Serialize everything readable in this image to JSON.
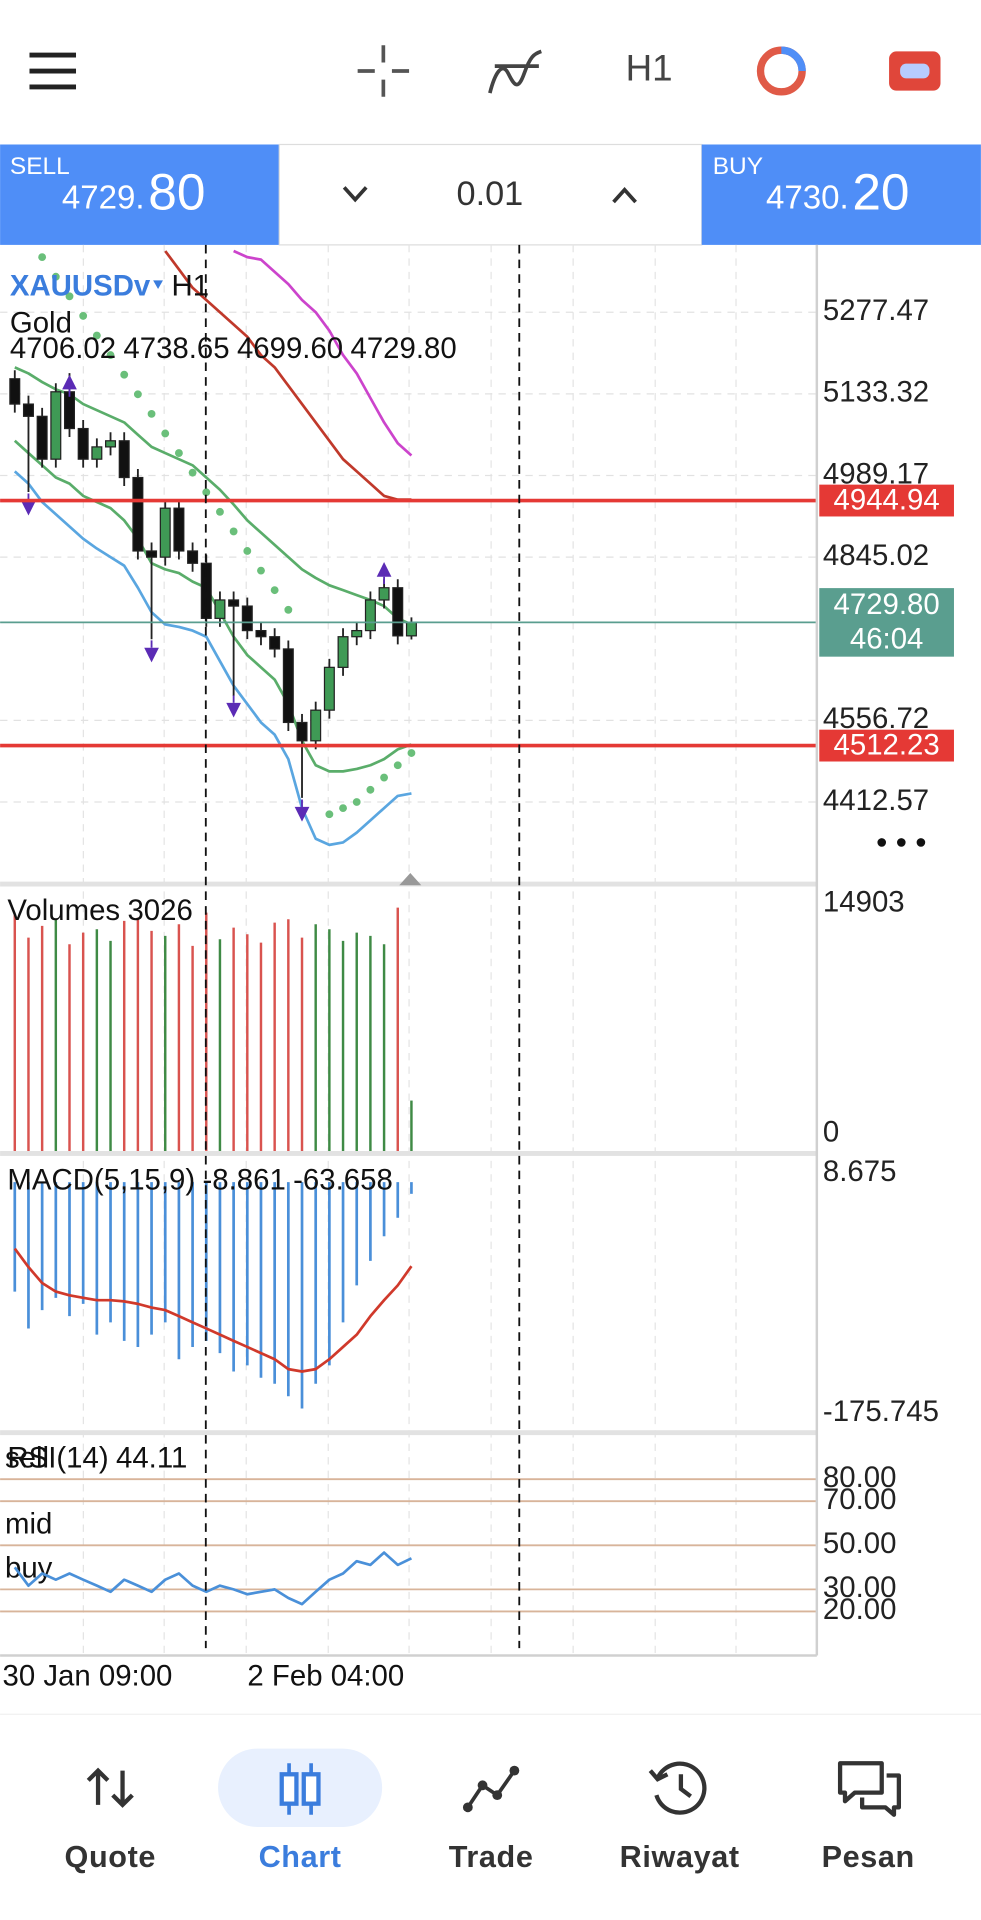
{
  "toolbar": {
    "timeframe": "H1"
  },
  "trade_bar": {
    "sell_label": "SELL",
    "sell_price_main": "4729.",
    "sell_price_big": "80",
    "lot": "0.01",
    "buy_label": "BUY",
    "buy_price_main": "4730.",
    "buy_price_big": "20"
  },
  "chart_data": [
    {
      "type": "candlestick",
      "symbol": "XAUUSDv",
      "timeframe": "H1",
      "description": "Gold",
      "ohlc_labels": [
        "4706.02",
        "4738.65",
        "4699.60",
        "4729.80"
      ],
      "open": [
        5160.0,
        5115.3,
        5093.7,
        5018.0,
        5137.0,
        5072.1,
        5018.0,
        5039.7,
        5050.5,
        4985.6,
        4855.9,
        4845.0,
        4931.5,
        4855.9,
        4834.2,
        4736.9,
        4769.4,
        4758.6,
        4715.3,
        4704.5,
        4682.9,
        4553.1,
        4520.7,
        4574.8,
        4650.4,
        4704.5,
        4715.3,
        4769.4,
        4791.0,
        4706.02
      ],
      "high": [
        5175.0,
        5130.3,
        5108.7,
        5152.0,
        5170.0,
        5087.1,
        5054.7,
        5065.5,
        5065.5,
        5000.6,
        4870.9,
        4946.5,
        4946.5,
        4870.9,
        4849.2,
        4784.4,
        4784.4,
        4773.6,
        4730.3,
        4719.5,
        4697.9,
        4568.1,
        4589.8,
        4665.4,
        4719.5,
        4730.3,
        4784.4,
        4806.0,
        4806.0,
        4738.65
      ],
      "low": [
        5100.3,
        4960.0,
        5003.0,
        5003.0,
        5057.1,
        5003.0,
        5003.0,
        5024.7,
        4970.6,
        4840.9,
        4700.0,
        4830.0,
        4840.9,
        4819.2,
        4721.9,
        4721.9,
        4600.0,
        4700.3,
        4689.5,
        4667.9,
        4538.1,
        4420.0,
        4505.7,
        4559.8,
        4635.4,
        4689.5,
        4700.3,
        4754.4,
        4691.0,
        4699.6
      ],
      "close": [
        5115.3,
        5093.7,
        5018.0,
        5137.0,
        5072.1,
        5018.0,
        5039.7,
        5050.5,
        4985.6,
        4855.9,
        4845.0,
        4931.5,
        4855.9,
        4834.2,
        4736.9,
        4769.4,
        4758.6,
        4715.3,
        4704.5,
        4682.9,
        4553.1,
        4520.7,
        4574.8,
        4650.4,
        4704.5,
        4715.3,
        4769.4,
        4791.0,
        4706.0,
        4729.8
      ],
      "up_color": "#3f9a55",
      "down_color": "#111111",
      "ylim": [
        4272.0,
        5396.4
      ],
      "yticks": [
        5277.47,
        5133.32,
        4989.17,
        4845.02,
        4556.72,
        4412.57
      ],
      "grid": true,
      "overlays": [
        {
          "style": "line",
          "color": "#5aa6e0",
          "values": [
            4996.4,
            4974.8,
            4942.4,
            4920.7,
            4899.1,
            4877.5,
            4860.2,
            4845.0,
            4829.9,
            4791.0,
            4747.7,
            4726.1,
            4721.8,
            4715.3,
            4704.5,
            4661.3,
            4618.0,
            4585.6,
            4553.1,
            4531.5,
            4488.3,
            4401.8,
            4347.7,
            4336.9,
            4341.2,
            4358.5,
            4380.2,
            4401.8,
            4423.4,
            4427.7
          ]
        },
        {
          "style": "line",
          "color": "#5aad6a",
          "values": [
            5050.5,
            5028.8,
            5007.2,
            4985.6,
            4974.8,
            4953.1,
            4942.4,
            4931.5,
            4909.9,
            4877.5,
            4834.2,
            4823.4,
            4816.9,
            4801.8,
            4791.0,
            4747.7,
            4704.5,
            4672.1,
            4650.4,
            4628.8,
            4585.6,
            4520.7,
            4477.5,
            4466.7,
            4466.7,
            4471.0,
            4477.5,
            4488.3,
            4505.6,
            4514.2
          ]
        },
        {
          "style": "line",
          "color": "#5aad6a",
          "values": [
            5180.2,
            5169.4,
            5154.2,
            5141.3,
            5132.6,
            5115.3,
            5104.5,
            5093.7,
            5082.9,
            5061.2,
            5039.7,
            5028.8,
            5018.0,
            5007.2,
            4985.6,
            4964.0,
            4938.0,
            4909.9,
            4888.3,
            4866.7,
            4845.0,
            4823.4,
            4808.3,
            4795.3,
            4786.7,
            4778.0,
            4769.4,
            4758.6,
            4736.9,
            4726.1
          ]
        },
        {
          "style": "line",
          "color": "#c0392b",
          "values": [
            null,
            null,
            null,
            null,
            null,
            null,
            null,
            null,
            null,
            null,
            null,
            5385.6,
            5353.2,
            5320.7,
            5299.1,
            5277.5,
            5255.8,
            5234.2,
            5201.8,
            5180.2,
            5147.7,
            5115.3,
            5082.9,
            5050.5,
            5018.0,
            4996.4,
            4974.8,
            4953.1,
            4946.6,
            4946.6
          ]
        },
        {
          "style": "line",
          "color": "#cc44cc",
          "values": [
            null,
            null,
            null,
            null,
            null,
            null,
            null,
            null,
            null,
            null,
            null,
            null,
            null,
            null,
            null,
            null,
            5385.6,
            5374.8,
            5370.4,
            5348.8,
            5327.2,
            5299.1,
            5277.5,
            5245.0,
            5201.8,
            5169.4,
            5126.1,
            5082.9,
            5046.1,
            5024.5
          ]
        },
        {
          "style": "dots",
          "color": "#6abf7a",
          "values": [
            null,
            null,
            5374.8,
            5340.2,
            5305.6,
            5271.0,
            5236.4,
            5201.8,
            5167.2,
            5132.6,
            5098.0,
            5063.4,
            5028.8,
            4994.2,
            4959.6,
            4925.0,
            4890.4,
            4855.9,
            4821.2,
            4786.7,
            4752.0,
            null,
            null,
            4391.0,
            4401.8,
            4412.6,
            4434.2,
            4455.8,
            4477.5,
            4499.1
          ]
        }
      ],
      "fractal_color": "#5b2bb5",
      "fractals_up": [
        null,
        null,
        null,
        null,
        5154.2,
        null,
        null,
        null,
        null,
        null,
        null,
        null,
        null,
        null,
        null,
        null,
        null,
        null,
        null,
        null,
        null,
        null,
        null,
        null,
        null,
        null,
        null,
        4823.4,
        null,
        null
      ],
      "fractals_down": [
        null,
        4931.5,
        null,
        null,
        null,
        null,
        null,
        null,
        null,
        null,
        4672.1,
        null,
        null,
        null,
        null,
        null,
        4574.8,
        null,
        null,
        null,
        null,
        4391.0,
        null,
        null,
        null,
        null,
        null,
        null,
        null,
        null
      ],
      "levels": [
        {
          "value": 4944.94,
          "color": "#e53935"
        },
        {
          "value": 4512.23,
          "color": "#e53935"
        }
      ],
      "bid": {
        "value": 4729.8,
        "label": "4729.80",
        "countdown": "46:04",
        "color": "#5a9e8f"
      },
      "x_labels": [
        "30 Jan 09:00",
        "2 Feb 04:00"
      ]
    },
    {
      "type": "volume",
      "title": "Volumes",
      "up_color": "#3f8a45",
      "down_color": "#d9534f",
      "values": [
        14200,
        12800,
        13500,
        13900,
        12400,
        13100,
        13300,
        12600,
        13800,
        14000,
        13200,
        12900,
        13600,
        12300,
        14300,
        12700,
        13400,
        13000,
        12500,
        13700,
        13900,
        12800,
        13600,
        13300,
        12600,
        13100,
        12900,
        12400,
        14600,
        3026
      ],
      "ylim": [
        0,
        15862
      ],
      "yticks": [
        14903,
        0
      ]
    },
    {
      "type": "macd",
      "title": "MACD(5,15,9)",
      "hist_color": "#4a8fd9",
      "signal_color": "#d0392b",
      "histogram": [
        -82.9,
        -110.8,
        -96.9,
        -87.6,
        -101.5,
        -92.2,
        -115.5,
        -106.2,
        -120.2,
        -124.8,
        -115.5,
        -106.2,
        -134.1,
        -124.8,
        -120.2,
        -129.5,
        -143.4,
        -138.8,
        -148.1,
        -152.7,
        -162.1,
        -171.4,
        -152.7,
        -138.8,
        -106.2,
        -78.2,
        -59.6,
        -41.0,
        -27.0,
        -8.861
      ],
      "signal": [
        -50.3,
        -64.3,
        -76.4,
        -82.9,
        -85.7,
        -87.6,
        -89.4,
        -89.4,
        -90.3,
        -92.2,
        -95.0,
        -96.9,
        -101.5,
        -106.2,
        -110.8,
        -115.5,
        -120.2,
        -124.8,
        -129.5,
        -134.1,
        -141.6,
        -143.4,
        -141.6,
        -134.1,
        -124.8,
        -115.5,
        -101.5,
        -89.4,
        -78.2,
        -63.658
      ],
      "ylim": [
        -187.85,
        19.85
      ],
      "yticks": [
        8.675,
        -175.745
      ]
    },
    {
      "type": "rsi",
      "title": "RSI(14)",
      "color": "#4a90d9",
      "level_color": "#d8b49a",
      "values": [
        40.0,
        31.7,
        37.2,
        34.4,
        37.2,
        34.4,
        31.7,
        28.9,
        34.4,
        31.7,
        28.9,
        34.4,
        37.2,
        31.7,
        28.9,
        31.7,
        30.0,
        27.8,
        28.9,
        30.0,
        26.1,
        23.3,
        28.9,
        34.4,
        37.2,
        42.8,
        41.1,
        46.7,
        41.1,
        44.11
      ],
      "ylim": [
        0,
        100
      ],
      "yticks": [
        {
          "value": 80,
          "label": "80.00",
          "name": "sell"
        },
        {
          "value": 70,
          "label": "70.00"
        },
        {
          "value": 50,
          "label": "50.00",
          "name": "mid"
        },
        {
          "value": 30,
          "label": "30.00",
          "name": "buy"
        },
        {
          "value": 20,
          "label": "20.00"
        }
      ]
    }
  ],
  "nav": [
    {
      "label": "Quote"
    },
    {
      "label": "Chart"
    },
    {
      "label": "Trade"
    },
    {
      "label": "Riwayat"
    },
    {
      "label": "Pesan"
    }
  ]
}
